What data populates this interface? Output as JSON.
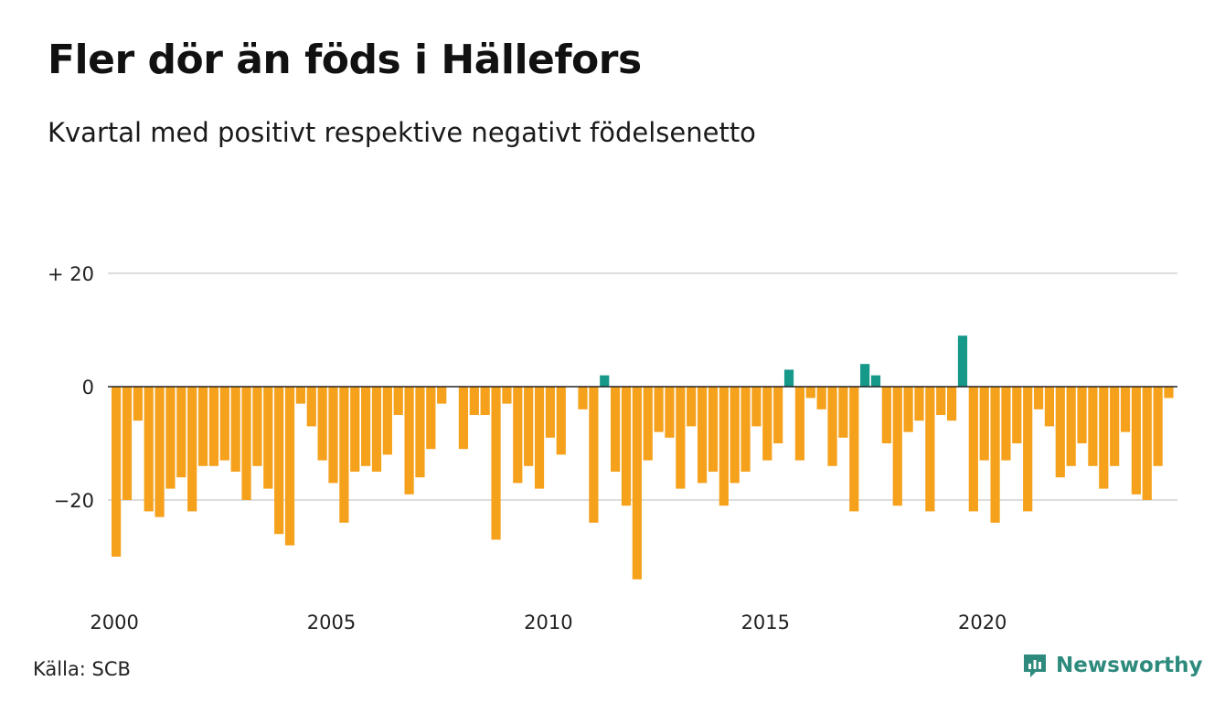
{
  "title": "Fler dör än föds i Hällefors",
  "subtitle": "Kvartal med positivt respektive negativt födelsenetto",
  "source": "Källa: SCB",
  "brand": "Newsworthy",
  "colors": {
    "negative": "#f5a11c",
    "positive": "#17998a",
    "grid": "#dddddd",
    "brand": "#2d8a7d"
  },
  "chart_data": {
    "type": "bar",
    "x_start": 2000,
    "quarters_per_year": 4,
    "ylim": [
      -35,
      21
    ],
    "y_ticks": [
      20,
      0,
      -20
    ],
    "y_tick_labels": [
      "+ 20",
      "0",
      "−20"
    ],
    "x_ticks": [
      2000,
      2005,
      2010,
      2015,
      2020
    ],
    "x_tick_labels": [
      "2000",
      "2005",
      "2010",
      "2015",
      "2020"
    ],
    "grid": true,
    "values": [
      -30,
      -20,
      -6,
      -22,
      -23,
      -18,
      -16,
      -22,
      -14,
      -14,
      -13,
      -15,
      -20,
      -14,
      -18,
      -26,
      -28,
      -3,
      -7,
      -13,
      -17,
      -24,
      -15,
      -14,
      -15,
      -12,
      -5,
      -19,
      -16,
      -11,
      -3,
      0,
      -11,
      -5,
      -5,
      -27,
      -3,
      -17,
      -14,
      -18,
      -9,
      -12,
      0,
      -4,
      -24,
      2,
      -15,
      -21,
      -34,
      -13,
      -8,
      -9,
      -18,
      -7,
      -17,
      -15,
      -21,
      -17,
      -15,
      -7,
      -13,
      -10,
      3,
      -13,
      -2,
      -4,
      -14,
      -9,
      -22,
      4,
      2,
      -10,
      -21,
      -8,
      -6,
      -22,
      -5,
      -6,
      9,
      -22,
      -13,
      -24,
      -13,
      -10,
      -22,
      -4,
      -7,
      -16,
      -14,
      -10,
      -14,
      -18,
      -14,
      -8,
      -19,
      -20,
      -14,
      -2
    ]
  }
}
